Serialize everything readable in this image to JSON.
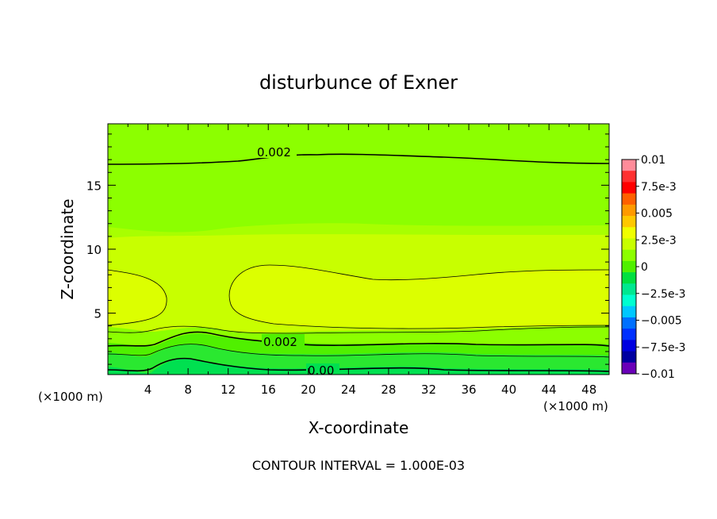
{
  "chart_data": {
    "type": "heatmap",
    "title": "disturbunce of Exner",
    "xlabel": "X-coordinate",
    "ylabel": "Z-coordinate",
    "x_unit": "(×1000 m)",
    "y_unit": "(×1000 m)",
    "xlim": [
      0,
      50
    ],
    "ylim": [
      0.2,
      19.8
    ],
    "x_ticks": [
      "4",
      "8",
      "12",
      "16",
      "20",
      "24",
      "28",
      "32",
      "36",
      "40",
      "44",
      "48"
    ],
    "y_ticks": [
      "5",
      "10",
      "15"
    ],
    "contour_interval_text": "CONTOUR INTERVAL = 1.000E-03",
    "contour_labels": [
      "0.002",
      "0.002",
      "0.00"
    ],
    "colorbar": {
      "labels": [
        "0.01",
        "7.5e-3",
        "0.005",
        "2.5e-3",
        "0",
        "−2.5e-3",
        "−0.005",
        "−7.5e-3",
        "−0.01"
      ],
      "colors": [
        "#ff8c9a",
        "#ff3030",
        "#ff0000",
        "#ff6000",
        "#ff9a00",
        "#ffc800",
        "#f0ff00",
        "#c8ff00",
        "#8cff00",
        "#50f000",
        "#00e040",
        "#00e890",
        "#00ffd0",
        "#00c8ff",
        "#0070ff",
        "#0030ff",
        "#0000e0",
        "#0000a0",
        "#6a00b8"
      ]
    }
  }
}
